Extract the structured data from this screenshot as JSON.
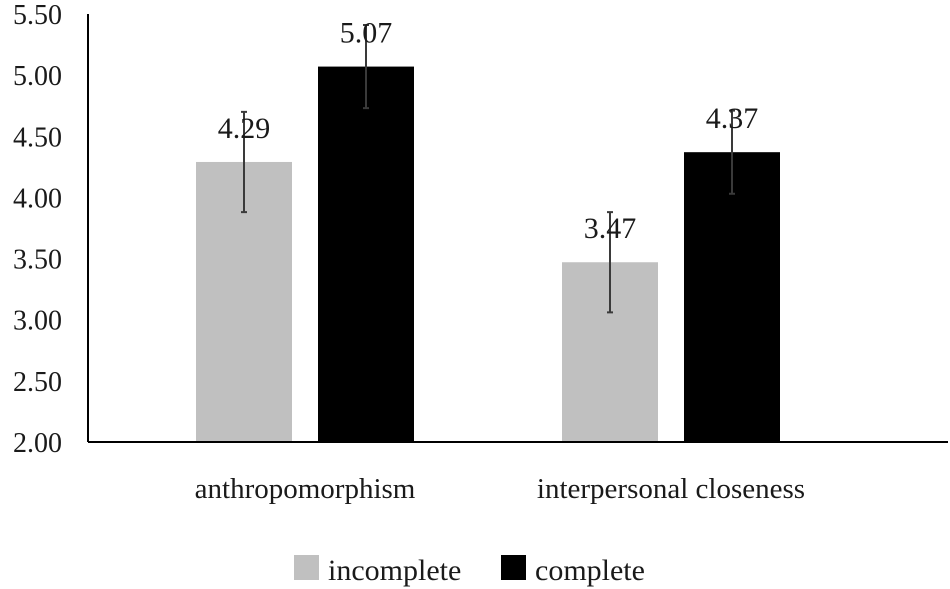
{
  "chart_data": {
    "type": "bar",
    "categories": [
      "anthropomorphism",
      "interpersonal closeness"
    ],
    "series": [
      {
        "name": "incomplete",
        "color": "#c0c0c0",
        "values": [
          4.29,
          3.47
        ],
        "labels": [
          "4.29",
          "3.47"
        ],
        "error": [
          0.41,
          0.41
        ]
      },
      {
        "name": "complete",
        "color": "#000000",
        "values": [
          5.07,
          4.37
        ],
        "labels": [
          "5.07",
          "4.37"
        ],
        "error": [
          0.34,
          0.34
        ]
      }
    ],
    "ylim": [
      2.0,
      5.5
    ],
    "yticks": [
      "2.00",
      "2.50",
      "3.00",
      "3.50",
      "4.00",
      "4.50",
      "5.00",
      "5.50"
    ],
    "legend": "bottom",
    "grid": false
  }
}
